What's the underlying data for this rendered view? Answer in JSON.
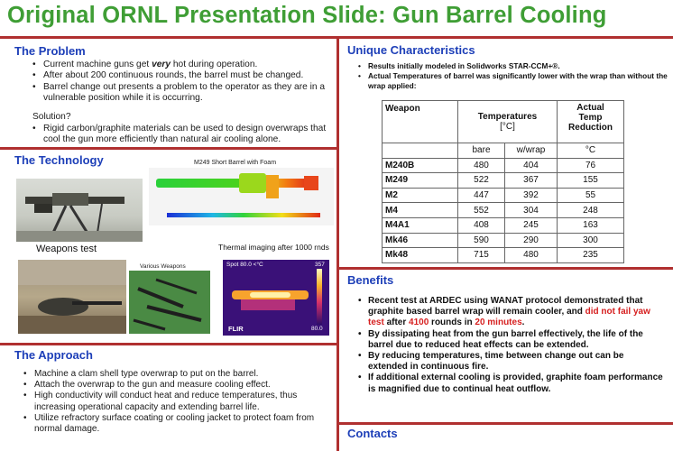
{
  "slide": {
    "title": "Original ORNL Presentation Slide:  Gun Barrel Cooling"
  },
  "problem": {
    "heading": "The Problem",
    "bullet1_pre": "Current machine guns get ",
    "bullet1_em": "very",
    "bullet1_post": " hot during operation.",
    "bullet2": "After about 200 continuous rounds, the barrel must be changed.",
    "bullet3": "Barrel change out presents a problem to the operator as they are in a vulnerable position while it is occurring.",
    "solution_label": "Solution?",
    "bullet4": "Rigid carbon/graphite materials can be used to design overwraps that cool the gun more efficiently than natural air cooling alone."
  },
  "technology": {
    "heading": "The Technology",
    "sim_title": "M249 Short Barrel with Foam",
    "weapons_test_caption": "Weapons test",
    "thermal_caption": "Thermal imaging after 1000 rnds",
    "various_caption": "Various Weapons",
    "ir_spot": "Spot",
    "ir_temp": "80.0 <°C",
    "ir_max": "357",
    "ir_min": "80.0",
    "ir_brand": "FLIR"
  },
  "approach": {
    "heading": "The Approach",
    "bullets": [
      "Machine a clam shell type overwrap to put on the barrel.",
      "Attach the overwrap to the gun and measure cooling effect.",
      "High conductivity will conduct heat and reduce temperatures, thus increasing operational capacity and extending barrel life.",
      "Utilize refractory surface coating or cooling jacket to protect foam from normal damage."
    ]
  },
  "unique": {
    "heading": "Unique Characteristics",
    "bullets": [
      "Results initially modeled in Solidworks STAR-CCM+®.",
      "Actual Temperatures of barrel was significantly lower with the wrap than without the wrap applied:"
    ],
    "table": {
      "col_weapon": "Weapon",
      "col_temps": "Temperatures",
      "col_temps_unit": "[°C]",
      "col_reduction_1": "Actual",
      "col_reduction_2": "Temp",
      "col_reduction_3": "Reduction",
      "sub_bare": "bare",
      "sub_wrap": "w/wrap",
      "sub_unit": "°C",
      "rows": [
        {
          "weapon": "M240B",
          "bare": "480",
          "wrap": "404",
          "reduction": "76"
        },
        {
          "weapon": "M249",
          "bare": "522",
          "wrap": "367",
          "reduction": "155"
        },
        {
          "weapon": "M2",
          "bare": "447",
          "wrap": "392",
          "reduction": "55"
        },
        {
          "weapon": "M4",
          "bare": "552",
          "wrap": "304",
          "reduction": "248"
        },
        {
          "weapon": "M4A1",
          "bare": "408",
          "wrap": "245",
          "reduction": "163"
        },
        {
          "weapon": "Mk46",
          "bare": "590",
          "wrap": "290",
          "reduction": "300"
        },
        {
          "weapon": "Mk48",
          "bare": "715",
          "wrap": "480",
          "reduction": "235"
        }
      ]
    }
  },
  "benefits": {
    "heading": "Benefits",
    "b1_a": "Recent test at ARDEC using WANAT protocol demonstrated that graphite based barrel wrap will remain cooler, and ",
    "b1_red1": "did not fail yaw test",
    "b1_b": " after ",
    "b1_red2": "4100",
    "b1_c": " rounds in ",
    "b1_red3": "20 minutes",
    "b1_d": ".",
    "bullets": [
      "By dissipating heat from the gun barrel effectively, the life of the barrel due to reduced heat effects can be extended.",
      "By reducing temperatures, time between change out can be extended in continuous fire.",
      "If additional external cooling is provided, graphite foam performance is magnified due to continual heat outflow."
    ]
  },
  "contacts": {
    "heading": "Contacts"
  },
  "colors": {
    "title": "#3f9e35",
    "heading": "#1d3fb8",
    "divider": "#b03030",
    "highlight": "#d61f1f"
  }
}
